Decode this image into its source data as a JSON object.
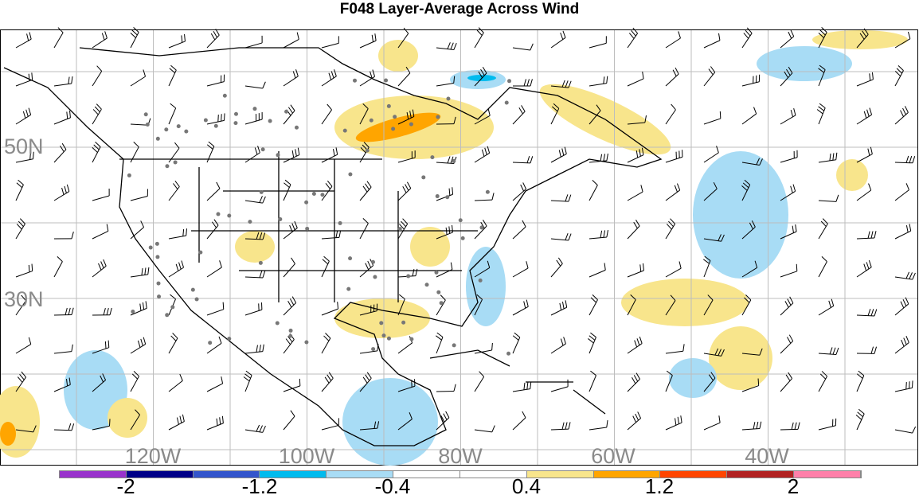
{
  "title": "F048 Layer-Average Across Wind",
  "lat_labels": [
    "50N",
    "30N"
  ],
  "lon_labels": [
    "120W",
    "100W",
    "80W",
    "60W",
    "40W"
  ],
  "colorbar": {
    "colors": [
      "#9933cc",
      "#000088",
      "#3355cc",
      "#00bbee",
      "#a8dcf5",
      "#ffffff",
      "#ffffff",
      "#f8e58c",
      "#ffa500",
      "#ff4500",
      "#b22222",
      "#ff80aa"
    ],
    "labels": [
      "-2",
      "-1.2",
      "-0.4",
      "0.4",
      "1.2",
      "2"
    ]
  }
}
